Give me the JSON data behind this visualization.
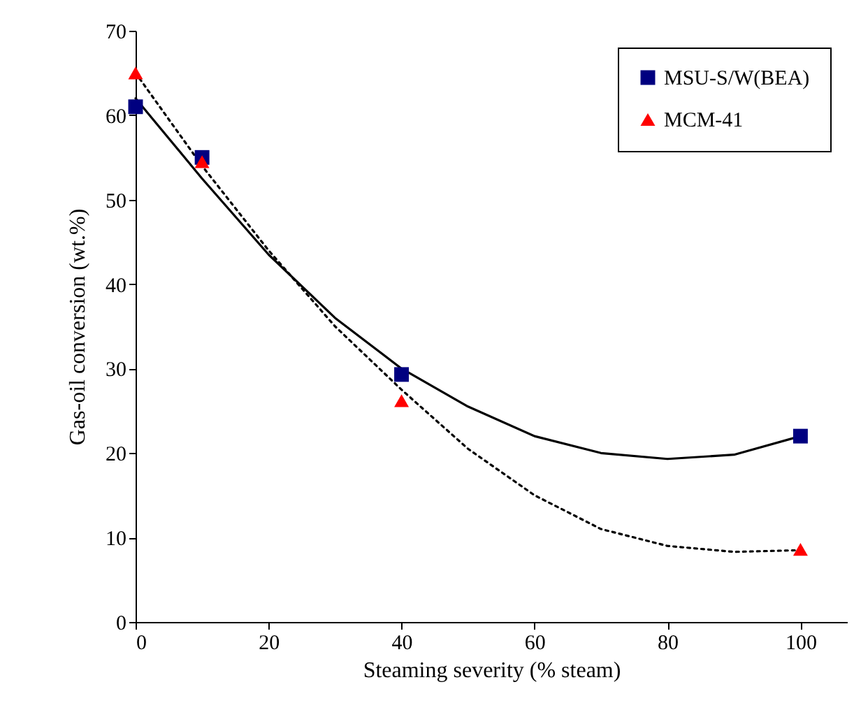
{
  "chart_data": {
    "type": "scatter",
    "xlabel": "Steaming severity (% steam)",
    "ylabel": "Gas-oil conversion (wt.%)",
    "xlim": [
      0,
      107
    ],
    "xticks": [
      0,
      20,
      40,
      60,
      80,
      100
    ],
    "ylim": [
      0,
      70
    ],
    "yticks": [
      0,
      10,
      20,
      30,
      40,
      50,
      60,
      70
    ],
    "grid": false,
    "legend": "top right",
    "series": [
      {
        "name": "MSU-S/W(BEA)",
        "color": "#000080",
        "marker": "square",
        "x": [
          0,
          10,
          40,
          100
        ],
        "values": [
          61,
          55,
          29.3,
          22
        ]
      },
      {
        "name": "MCM-41",
        "color": "#ff0000",
        "marker": "triangle",
        "x": [
          0,
          10,
          40,
          100
        ],
        "values": [
          65,
          54.5,
          26.2,
          8.6
        ]
      },
      {
        "type": "line",
        "color": "#000000",
        "line_style": "solid",
        "x": [
          0,
          10,
          20,
          30,
          40,
          50,
          60,
          70,
          80,
          90,
          100
        ],
        "values": [
          62,
          52.5,
          43.5,
          36,
          30,
          25.5,
          22,
          20,
          19.3,
          19.8,
          22
        ]
      },
      {
        "type": "line",
        "color": "#000000",
        "line_style": "dotted",
        "x": [
          0,
          10,
          20,
          30,
          40,
          50,
          60,
          70,
          80,
          90,
          100
        ],
        "values": [
          65,
          54,
          44,
          35,
          27.5,
          20.5,
          15,
          11,
          9,
          8.3,
          8.5
        ]
      }
    ]
  }
}
